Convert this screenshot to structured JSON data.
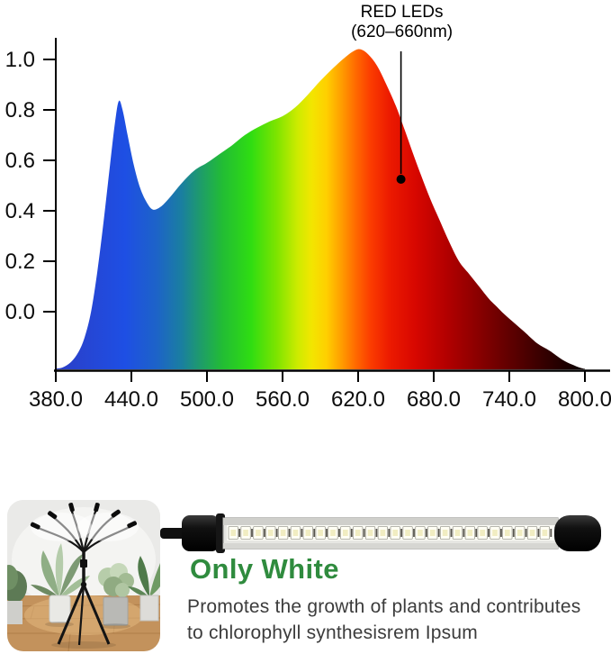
{
  "chart_data": {
    "type": "area",
    "title": "",
    "xlabel": "",
    "ylabel": "",
    "x_unit_hint": "nm",
    "xlim": [
      380,
      800
    ],
    "ylim_labeled": [
      0.0,
      1.0
    ],
    "ylim_drawn": [
      -0.23,
      1.1
    ],
    "grid": false,
    "legend": "none",
    "x_tick_labels": [
      "380.0",
      "440.0",
      "500.0",
      "560.0",
      "620.0",
      "680.0",
      "740.0",
      "800.0"
    ],
    "x_tick_values": [
      380,
      440,
      500,
      560,
      620,
      680,
      740,
      800
    ],
    "y_tick_labels": [
      "1.0",
      "0.8",
      "0.6",
      "0.4",
      "0.2",
      "0.0"
    ],
    "y_tick_values": [
      1.0,
      0.8,
      0.6,
      0.4,
      0.2,
      0.0
    ],
    "series": [
      {
        "name": "led-spectrum",
        "points": [
          [
            380,
            -0.225
          ],
          [
            385,
            -0.222
          ],
          [
            392,
            -0.2
          ],
          [
            398,
            -0.16
          ],
          [
            403,
            -0.1
          ],
          [
            408,
            0.0
          ],
          [
            413,
            0.16
          ],
          [
            418,
            0.36
          ],
          [
            423,
            0.58
          ],
          [
            427,
            0.75
          ],
          [
            430,
            0.835
          ],
          [
            433,
            0.8
          ],
          [
            437,
            0.7
          ],
          [
            442,
            0.58
          ],
          [
            447,
            0.49
          ],
          [
            452,
            0.435
          ],
          [
            457,
            0.405
          ],
          [
            463,
            0.415
          ],
          [
            470,
            0.45
          ],
          [
            480,
            0.51
          ],
          [
            490,
            0.56
          ],
          [
            500,
            0.59
          ],
          [
            510,
            0.625
          ],
          [
            520,
            0.66
          ],
          [
            530,
            0.7
          ],
          [
            540,
            0.73
          ],
          [
            550,
            0.755
          ],
          [
            560,
            0.775
          ],
          [
            570,
            0.81
          ],
          [
            580,
            0.86
          ],
          [
            590,
            0.915
          ],
          [
            600,
            0.965
          ],
          [
            610,
            1.01
          ],
          [
            617,
            1.035
          ],
          [
            622,
            1.04
          ],
          [
            628,
            1.02
          ],
          [
            635,
            0.975
          ],
          [
            642,
            0.905
          ],
          [
            650,
            0.815
          ],
          [
            657,
            0.72
          ],
          [
            663,
            0.635
          ],
          [
            670,
            0.54
          ],
          [
            677,
            0.45
          ],
          [
            684,
            0.37
          ],
          [
            692,
            0.28
          ],
          [
            700,
            0.2
          ],
          [
            708,
            0.15
          ],
          [
            716,
            0.1
          ],
          [
            724,
            0.05
          ],
          [
            730,
            0.02
          ],
          [
            736,
            -0.01
          ],
          [
            744,
            -0.045
          ],
          [
            752,
            -0.08
          ],
          [
            762,
            -0.125
          ],
          [
            772,
            -0.155
          ],
          [
            782,
            -0.19
          ],
          [
            790,
            -0.21
          ],
          [
            796,
            -0.222
          ],
          [
            800,
            -0.227
          ]
        ]
      }
    ],
    "gradient_stops": [
      [
        380,
        "#2c3ec6"
      ],
      [
        435,
        "#1e4fe4"
      ],
      [
        460,
        "#1d63c8"
      ],
      [
        480,
        "#1a7fa0"
      ],
      [
        495,
        "#1e9c6a"
      ],
      [
        512,
        "#22bc35"
      ],
      [
        535,
        "#2fdd12"
      ],
      [
        555,
        "#7ce400"
      ],
      [
        572,
        "#cdeb00"
      ],
      [
        583,
        "#f2e600"
      ],
      [
        595,
        "#ffcf00"
      ],
      [
        607,
        "#ff9c00"
      ],
      [
        618,
        "#ff6a00"
      ],
      [
        630,
        "#fb3c00"
      ],
      [
        645,
        "#ec1a00"
      ],
      [
        665,
        "#d80700"
      ],
      [
        690,
        "#b30000"
      ],
      [
        715,
        "#8a0000"
      ],
      [
        740,
        "#600000"
      ],
      [
        765,
        "#390000"
      ],
      [
        785,
        "#1c0000"
      ],
      [
        800,
        "#0a0000"
      ]
    ],
    "annotation": {
      "line1": "RED LEDs",
      "line2": "(620–660nm)",
      "pointer_x_nm": 654,
      "pointer_y": 0.525
    }
  },
  "product": {
    "headline": "Only White",
    "headline_color": "#2f8b3e",
    "description_lines": [
      "Promotes the growth of plants and contributes",
      "to chlorophyll synthesisrem Ipsum"
    ],
    "description_color": "#3c3c3c",
    "photo": {
      "subject": "grow light on tripod stand with potted plants"
    },
    "led_bar": {
      "led_count": 26
    }
  }
}
